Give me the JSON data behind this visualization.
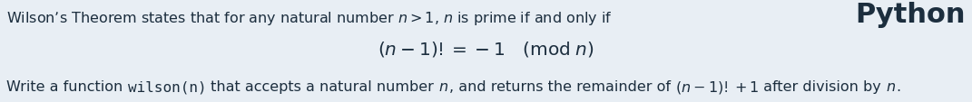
{
  "bg_color": "#e8eef4",
  "text_color": "#1c2e3e",
  "line1": "Wilson’s Theorem states that for any natural number $n > 1$, $n$ is prime if and only if",
  "line2": "$(n-1)! = -1\\quad(\\mathrm{mod}\\; n)$",
  "line3_segments": [
    {
      "text": "Write a function ",
      "mono": false,
      "math": false
    },
    {
      "text": "wilson(n)",
      "mono": true,
      "math": false
    },
    {
      "text": " that accepts a natural number ",
      "mono": false,
      "math": false
    },
    {
      "text": "$n$",
      "mono": false,
      "math": true
    },
    {
      "text": ", and returns the remainder of ",
      "mono": false,
      "math": false
    },
    {
      "text": "$(n-1)!+1$",
      "mono": false,
      "math": true
    },
    {
      "text": " after division by ",
      "mono": false,
      "math": false
    },
    {
      "text": "$n$",
      "mono": false,
      "math": true
    },
    {
      "text": ".",
      "mono": false,
      "math": false
    }
  ],
  "python_label": "Python",
  "body_fontsize": 11.5,
  "formula_fontsize": 14.5,
  "python_fontsize": 22,
  "fig_width": 10.71,
  "fig_height": 1.14,
  "dpi": 100
}
